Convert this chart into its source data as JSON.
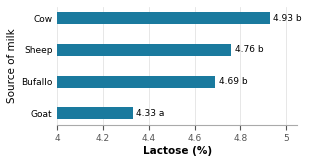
{
  "categories": [
    "Goat",
    "Bufallo",
    "Sheep",
    "Cow"
  ],
  "values": [
    4.33,
    4.69,
    4.76,
    4.93
  ],
  "bar_starts": [
    4.0,
    4.0,
    4.0,
    4.0
  ],
  "labels": [
    "4.33 a",
    "4.69 b",
    "4.76 b",
    "4.93 b"
  ],
  "bar_color": "#1a7a9e",
  "xlabel": "Lactose (%)",
  "ylabel": "Source of milk",
  "xlim": [
    4.0,
    5.05
  ],
  "xticks": [
    4.0,
    4.2,
    4.4,
    4.6,
    4.8,
    5.0
  ],
  "background_color": "#ffffff",
  "bar_height": 0.38,
  "label_fontsize": 6.5,
  "axis_fontsize": 7.5,
  "tick_fontsize": 6.5
}
